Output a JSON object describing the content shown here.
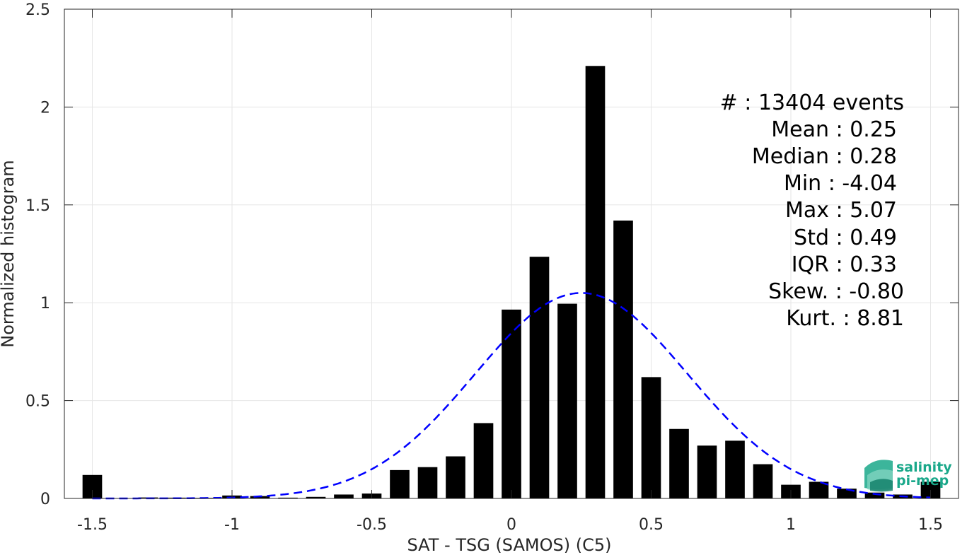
{
  "chart_data": {
    "type": "bar",
    "title": "",
    "xlabel": "SAT - TSG (SAMOS) (C5)",
    "ylabel": "Normalized histogram",
    "xlim": [
      -1.6,
      1.6
    ],
    "ylim": [
      0,
      2.5
    ],
    "grid": true,
    "bin_width": 0.1,
    "x_ticks": [
      -1.5,
      -1,
      -0.5,
      0,
      0.5,
      1,
      1.5
    ],
    "x_tick_labels": [
      "-1.5",
      "-1",
      "-0.5",
      "0",
      "0.5",
      "1",
      "1.5"
    ],
    "y_ticks": [
      0,
      0.5,
      1,
      1.5,
      2,
      2.5
    ],
    "y_tick_labels": [
      "0",
      "0.5",
      "1",
      "1.5",
      "2",
      "2.5"
    ],
    "bars": {
      "x": [
        -1.5,
        -1.4,
        -1.3,
        -1.2,
        -1.1,
        -1.0,
        -0.9,
        -0.8,
        -0.7,
        -0.6,
        -0.5,
        -0.4,
        -0.3,
        -0.2,
        -0.1,
        0.0,
        0.1,
        0.2,
        0.3,
        0.4,
        0.5,
        0.6,
        0.7,
        0.8,
        0.9,
        1.0,
        1.1,
        1.2,
        1.3,
        1.4,
        1.5
      ],
      "values": [
        0.12,
        0.0,
        0.005,
        0.004,
        0.003,
        0.015,
        0.012,
        0.004,
        0.008,
        0.02,
        0.025,
        0.145,
        0.16,
        0.215,
        0.385,
        0.965,
        1.235,
        0.995,
        2.21,
        1.42,
        0.62,
        0.355,
        0.27,
        0.295,
        0.175,
        0.07,
        0.085,
        0.05,
        0.03,
        0.02,
        0.085
      ],
      "color": "#000000"
    },
    "fit_curve": {
      "style": "dashed",
      "color": "#0000ff",
      "mean": 0.25,
      "std": 0.38,
      "x_range": [
        -1.5,
        1.5
      ]
    },
    "stats_annotation": [
      "#  : 13404 events",
      "Mean : 0.25",
      "Median : 0.28",
      "Min : -4.04",
      "Max : 5.07",
      "Std : 0.49",
      "IQR : 0.33",
      "Skew. : -0.80",
      "Kurt. : 8.81"
    ],
    "logo": {
      "line1": "salinity",
      "line2": "pi-mep",
      "color": "#1aa88a"
    }
  }
}
